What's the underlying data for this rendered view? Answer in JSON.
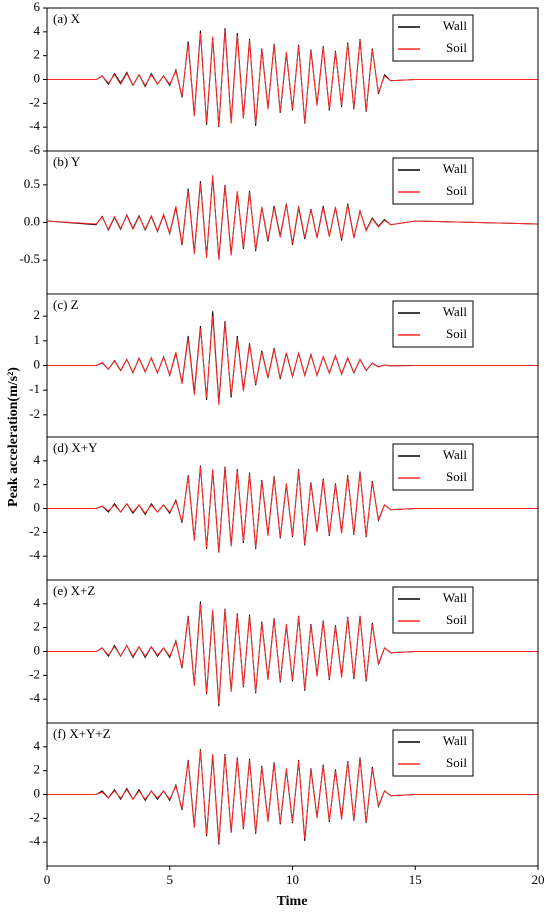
{
  "xlabel": "Time",
  "ylabel": "Peak acceleration(m/s²)",
  "chart_data": [
    {
      "type": "line",
      "title": "(a) X",
      "x": [
        0,
        2,
        2.25,
        2.5,
        2.75,
        3,
        3.25,
        3.5,
        3.75,
        4,
        4.25,
        4.5,
        4.75,
        5,
        5.25,
        5.5,
        5.75,
        6,
        6.25,
        6.5,
        6.75,
        7,
        7.25,
        7.5,
        7.75,
        8,
        8.25,
        8.5,
        8.75,
        9,
        9.25,
        9.5,
        9.75,
        10,
        10.25,
        10.5,
        10.75,
        11,
        11.25,
        11.5,
        11.75,
        12,
        12.25,
        12.5,
        12.75,
        13,
        13.25,
        13.5,
        13.75,
        14,
        15,
        20
      ],
      "xlim": [
        0,
        20
      ],
      "ylim": [
        -6,
        6
      ],
      "yticks": [
        -6,
        -4,
        -2,
        0,
        2,
        4,
        6
      ],
      "series": [
        {
          "name": "Wall",
          "color": "#000000",
          "values": [
            0,
            0,
            0.3,
            -0.4,
            0.5,
            -0.3,
            0.6,
            -0.5,
            0.4,
            -0.6,
            0.5,
            -0.4,
            0.3,
            -0.5,
            0.8,
            -1.5,
            3.2,
            -3.0,
            4.1,
            -3.8,
            3.5,
            -4.0,
            4.3,
            -3.6,
            3.9,
            -3.2,
            3.4,
            -3.9,
            2.6,
            -2.4,
            3.0,
            -2.8,
            2.2,
            -2.6,
            2.9,
            -3.7,
            2.5,
            -2.1,
            2.8,
            -2.6,
            2.4,
            -2.3,
            3.1,
            -2.5,
            3.4,
            -2.7,
            2.6,
            -1.2,
            0.4,
            -0.1,
            0,
            0
          ]
        },
        {
          "name": "Soil",
          "color": "#ff2a2a",
          "values": [
            0,
            0,
            0.3,
            -0.3,
            0.4,
            -0.4,
            0.5,
            -0.5,
            0.4,
            -0.5,
            0.4,
            -0.4,
            0.3,
            -0.4,
            0.7,
            -1.4,
            3.0,
            -3.1,
            3.9,
            -3.6,
            3.6,
            -3.9,
            4.1,
            -3.7,
            3.7,
            -3.3,
            3.3,
            -3.7,
            2.5,
            -2.5,
            2.9,
            -2.7,
            2.3,
            -2.5,
            2.8,
            -3.6,
            2.4,
            -2.2,
            2.7,
            -2.5,
            2.3,
            -2.2,
            3.0,
            -2.4,
            3.3,
            -2.6,
            2.5,
            -1.1,
            0.3,
            -0.1,
            0,
            0
          ]
        }
      ]
    },
    {
      "type": "line",
      "title": "(b) Y",
      "x": [
        0,
        2,
        2.25,
        2.5,
        2.75,
        3,
        3.25,
        3.5,
        3.75,
        4,
        4.25,
        4.5,
        4.75,
        5,
        5.25,
        5.5,
        5.75,
        6,
        6.25,
        6.5,
        6.75,
        7,
        7.25,
        7.5,
        7.75,
        8,
        8.25,
        8.5,
        8.75,
        9,
        9.25,
        9.5,
        9.75,
        10,
        10.25,
        10.5,
        10.75,
        11,
        11.25,
        11.5,
        11.75,
        12,
        12.25,
        12.5,
        12.75,
        13,
        13.25,
        13.5,
        13.75,
        14,
        15,
        20
      ],
      "xlim": [
        0,
        20
      ],
      "ylim": [
        -0.95,
        0.95
      ],
      "yticks": [
        -0.5,
        {
          "value": 0,
          "label": "0.0"
        },
        0.5
      ],
      "series": [
        {
          "name": "Wall",
          "color": "#000000",
          "values": [
            0.02,
            -0.03,
            0.08,
            -0.1,
            0.07,
            -0.09,
            0.1,
            -0.08,
            0.09,
            -0.1,
            0.08,
            -0.12,
            0.1,
            -0.15,
            0.2,
            -0.3,
            0.45,
            -0.4,
            0.55,
            -0.45,
            0.6,
            -0.48,
            0.5,
            -0.42,
            0.4,
            -0.35,
            0.42,
            -0.38,
            0.2,
            -0.25,
            0.22,
            -0.18,
            0.25,
            -0.3,
            0.2,
            -0.22,
            0.18,
            -0.2,
            0.22,
            -0.18,
            0.2,
            -0.24,
            0.25,
            -0.2,
            0.15,
            -0.1,
            0.06,
            -0.05,
            0.04,
            -0.03,
            0.02,
            -0.02
          ]
        },
        {
          "name": "Soil",
          "color": "#ff2a2a",
          "values": [
            0.02,
            -0.02,
            0.07,
            -0.09,
            0.08,
            -0.08,
            0.09,
            -0.09,
            0.08,
            -0.09,
            0.09,
            -0.11,
            0.11,
            -0.14,
            0.22,
            -0.28,
            0.42,
            -0.42,
            0.52,
            -0.47,
            0.63,
            -0.5,
            0.48,
            -0.44,
            0.42,
            -0.33,
            0.4,
            -0.36,
            0.21,
            -0.23,
            0.2,
            -0.2,
            0.24,
            -0.28,
            0.22,
            -0.2,
            0.17,
            -0.21,
            0.2,
            -0.19,
            0.21,
            -0.22,
            0.23,
            -0.21,
            0.16,
            -0.11,
            0.05,
            -0.06,
            0.03,
            -0.03,
            0.02,
            -0.02
          ]
        }
      ]
    },
    {
      "type": "line",
      "title": "(c) Z",
      "x": [
        0,
        2,
        2.25,
        2.5,
        2.75,
        3,
        3.25,
        3.5,
        3.75,
        4,
        4.25,
        4.5,
        4.75,
        5,
        5.25,
        5.5,
        5.75,
        6,
        6.25,
        6.5,
        6.75,
        7,
        7.25,
        7.5,
        7.75,
        8,
        8.25,
        8.5,
        8.75,
        9,
        9.25,
        9.5,
        9.75,
        10,
        10.25,
        10.5,
        10.75,
        11,
        11.25,
        11.5,
        11.75,
        12,
        12.25,
        12.5,
        12.75,
        13,
        13.25,
        13.5,
        13.75,
        14,
        15,
        20
      ],
      "xlim": [
        0,
        20
      ],
      "ylim": [
        -2.9,
        2.9
      ],
      "yticks": [
        -2,
        -1,
        0,
        1,
        2
      ],
      "series": [
        {
          "name": "Wall",
          "color": "#000000",
          "values": [
            0,
            0,
            0.1,
            -0.15,
            0.2,
            -0.2,
            0.25,
            -0.3,
            0.3,
            -0.25,
            0.3,
            -0.3,
            0.35,
            -0.4,
            0.5,
            -0.7,
            1.2,
            -1.1,
            1.6,
            -1.4,
            2.2,
            -1.5,
            1.8,
            -1.3,
            1.2,
            -1.0,
            0.9,
            -0.8,
            0.6,
            -0.5,
            0.7,
            -0.55,
            0.5,
            -0.45,
            0.5,
            -0.4,
            0.45,
            -0.4,
            0.35,
            -0.3,
            0.4,
            -0.35,
            0.3,
            -0.3,
            0.25,
            -0.2,
            0.1,
            -0.05,
            0.02,
            -0.01,
            0,
            0
          ]
        },
        {
          "name": "Soil",
          "color": "#ff2a2a",
          "values": [
            0,
            0,
            0.12,
            -0.14,
            0.18,
            -0.22,
            0.24,
            -0.28,
            0.28,
            -0.27,
            0.32,
            -0.29,
            0.33,
            -0.38,
            0.55,
            -0.75,
            1.1,
            -1.2,
            1.5,
            -1.3,
            2.0,
            -1.6,
            1.7,
            -1.2,
            1.1,
            -1.05,
            0.85,
            -0.75,
            0.55,
            -0.52,
            0.65,
            -0.5,
            0.52,
            -0.42,
            0.48,
            -0.42,
            0.42,
            -0.38,
            0.36,
            -0.32,
            0.38,
            -0.33,
            0.32,
            -0.28,
            0.24,
            -0.19,
            0.09,
            -0.06,
            0.02,
            -0.02,
            0,
            0
          ]
        }
      ]
    },
    {
      "type": "line",
      "title": "(d) X+Y",
      "x": [
        0,
        2,
        2.25,
        2.5,
        2.75,
        3,
        3.25,
        3.5,
        3.75,
        4,
        4.25,
        4.5,
        4.75,
        5,
        5.25,
        5.5,
        5.75,
        6,
        6.25,
        6.5,
        6.75,
        7,
        7.25,
        7.5,
        7.75,
        8,
        8.25,
        8.5,
        8.75,
        9,
        9.25,
        9.5,
        9.75,
        10,
        10.25,
        10.5,
        10.75,
        11,
        11.25,
        11.5,
        11.75,
        12,
        12.25,
        12.5,
        12.75,
        13,
        13.25,
        13.5,
        13.75,
        14,
        15,
        20
      ],
      "xlim": [
        0,
        20
      ],
      "ylim": [
        -6,
        6
      ],
      "yticks": [
        -4,
        -2,
        0,
        2,
        4
      ],
      "series": [
        {
          "name": "Wall",
          "color": "#000000",
          "values": [
            0,
            0,
            0.2,
            -0.3,
            0.4,
            -0.3,
            0.4,
            -0.4,
            0.3,
            -0.5,
            0.4,
            -0.3,
            0.3,
            -0.4,
            0.7,
            -1.2,
            2.8,
            -2.6,
            3.6,
            -3.4,
            3.2,
            -3.7,
            3.5,
            -3.1,
            3.3,
            -2.9,
            3.0,
            -3.4,
            2.4,
            -2.2,
            2.7,
            -2.5,
            2.0,
            -2.4,
            3.3,
            -3.1,
            2.2,
            -1.9,
            2.5,
            -2.3,
            2.1,
            -2.0,
            2.8,
            -2.2,
            3.1,
            -2.4,
            2.3,
            -1.0,
            0.3,
            -0.1,
            0,
            0
          ]
        },
        {
          "name": "Soil",
          "color": "#ff2a2a",
          "values": [
            0,
            0,
            0.2,
            -0.2,
            0.3,
            -0.3,
            0.4,
            -0.3,
            0.3,
            -0.4,
            0.3,
            -0.3,
            0.3,
            -0.3,
            0.6,
            -1.1,
            2.7,
            -2.7,
            3.5,
            -3.3,
            3.3,
            -3.6,
            3.4,
            -3.2,
            3.2,
            -2.8,
            2.9,
            -3.3,
            2.3,
            -2.3,
            2.6,
            -2.4,
            2.1,
            -2.3,
            3.2,
            -3.0,
            2.1,
            -2.0,
            2.4,
            -2.2,
            2.0,
            -2.1,
            2.7,
            -2.1,
            3.0,
            -2.3,
            2.2,
            -0.9,
            0.3,
            -0.1,
            0,
            0
          ]
        }
      ]
    },
    {
      "type": "line",
      "title": "(e) X+Z",
      "x": [
        0,
        2,
        2.25,
        2.5,
        2.75,
        3,
        3.25,
        3.5,
        3.75,
        4,
        4.25,
        4.5,
        4.75,
        5,
        5.25,
        5.5,
        5.75,
        6,
        6.25,
        6.5,
        6.75,
        7,
        7.25,
        7.5,
        7.75,
        8,
        8.25,
        8.5,
        8.75,
        9,
        9.25,
        9.5,
        9.75,
        10,
        10.25,
        10.5,
        10.75,
        11,
        11.25,
        11.5,
        11.75,
        12,
        12.25,
        12.5,
        12.75,
        13,
        13.25,
        13.5,
        13.75,
        14,
        15,
        20
      ],
      "xlim": [
        0,
        20
      ],
      "ylim": [
        -6,
        6
      ],
      "yticks": [
        -4,
        -2,
        0,
        2,
        4
      ],
      "series": [
        {
          "name": "Wall",
          "color": "#000000",
          "values": [
            0,
            0,
            0.3,
            -0.4,
            0.5,
            -0.4,
            0.5,
            -0.5,
            0.4,
            -0.5,
            0.4,
            -0.4,
            0.3,
            -0.5,
            0.9,
            -1.4,
            3.0,
            -2.8,
            4.2,
            -3.6,
            3.4,
            -4.6,
            3.6,
            -3.3,
            3.2,
            -3.0,
            3.1,
            -3.5,
            2.5,
            -2.3,
            2.8,
            -2.6,
            2.2,
            -2.5,
            3.0,
            -3.3,
            2.3,
            -2.0,
            2.6,
            -2.4,
            2.2,
            -2.1,
            2.9,
            -2.3,
            3.0,
            -2.5,
            2.4,
            -1.1,
            0.3,
            -0.1,
            0,
            0
          ]
        },
        {
          "name": "Soil",
          "color": "#ff2a2a",
          "values": [
            0,
            0,
            0.3,
            -0.3,
            0.4,
            -0.4,
            0.5,
            -0.4,
            0.4,
            -0.4,
            0.4,
            -0.3,
            0.3,
            -0.4,
            0.8,
            -1.3,
            2.9,
            -2.9,
            4.0,
            -3.5,
            3.5,
            -4.4,
            3.5,
            -3.4,
            3.1,
            -2.9,
            3.0,
            -3.4,
            2.4,
            -2.4,
            2.7,
            -2.5,
            2.3,
            -2.4,
            2.9,
            -3.2,
            2.2,
            -2.1,
            2.5,
            -2.3,
            2.1,
            -2.2,
            2.8,
            -2.2,
            2.9,
            -2.4,
            2.3,
            -1.0,
            0.3,
            -0.1,
            0,
            0
          ]
        }
      ]
    },
    {
      "type": "line",
      "title": "(f) X+Y+Z",
      "x": [
        0,
        2,
        2.25,
        2.5,
        2.75,
        3,
        3.25,
        3.5,
        3.75,
        4,
        4.25,
        4.5,
        4.75,
        5,
        5.25,
        5.5,
        5.75,
        6,
        6.25,
        6.5,
        6.75,
        7,
        7.25,
        7.5,
        7.75,
        8,
        8.25,
        8.5,
        8.75,
        9,
        9.25,
        9.5,
        9.75,
        10,
        10.25,
        10.5,
        10.75,
        11,
        11.25,
        11.5,
        11.75,
        12,
        12.25,
        12.5,
        12.75,
        13,
        13.25,
        13.5,
        13.75,
        14,
        15,
        20
      ],
      "xlim": [
        0,
        20
      ],
      "xticks": [
        0,
        5,
        10,
        15,
        20
      ],
      "ylim": [
        -6,
        6
      ],
      "yticks": [
        -4,
        -2,
        0,
        2,
        4
      ],
      "series": [
        {
          "name": "Wall",
          "color": "#000000",
          "values": [
            0,
            0,
            0.3,
            -0.3,
            0.4,
            -0.4,
            0.5,
            -0.4,
            0.4,
            -0.5,
            0.3,
            -0.4,
            0.3,
            -0.5,
            0.8,
            -1.3,
            2.9,
            -2.7,
            3.8,
            -3.5,
            3.3,
            -4.2,
            3.4,
            -3.2,
            3.1,
            -2.9,
            3.0,
            -3.3,
            2.4,
            -2.2,
            2.7,
            -2.5,
            2.1,
            -2.4,
            2.9,
            -3.9,
            2.2,
            -1.9,
            2.5,
            -2.3,
            2.1,
            -2.0,
            2.8,
            -2.2,
            3.1,
            -2.4,
            2.3,
            -1.0,
            0.3,
            -0.1,
            0,
            0
          ]
        },
        {
          "name": "Soil",
          "color": "#ff2a2a",
          "values": [
            0,
            0,
            0.2,
            -0.3,
            0.3,
            -0.3,
            0.4,
            -0.4,
            0.3,
            -0.4,
            0.3,
            -0.3,
            0.3,
            -0.4,
            0.7,
            -1.2,
            2.8,
            -2.8,
            3.7,
            -3.4,
            3.4,
            -4.0,
            3.3,
            -3.1,
            3.0,
            -2.8,
            2.9,
            -3.2,
            2.3,
            -2.3,
            2.6,
            -2.4,
            2.2,
            -2.3,
            2.8,
            -3.7,
            2.1,
            -2.0,
            2.4,
            -2.2,
            2.0,
            -2.1,
            2.7,
            -2.1,
            3.0,
            -2.3,
            2.2,
            -0.9,
            0.3,
            -0.1,
            0,
            0
          ]
        }
      ]
    }
  ]
}
